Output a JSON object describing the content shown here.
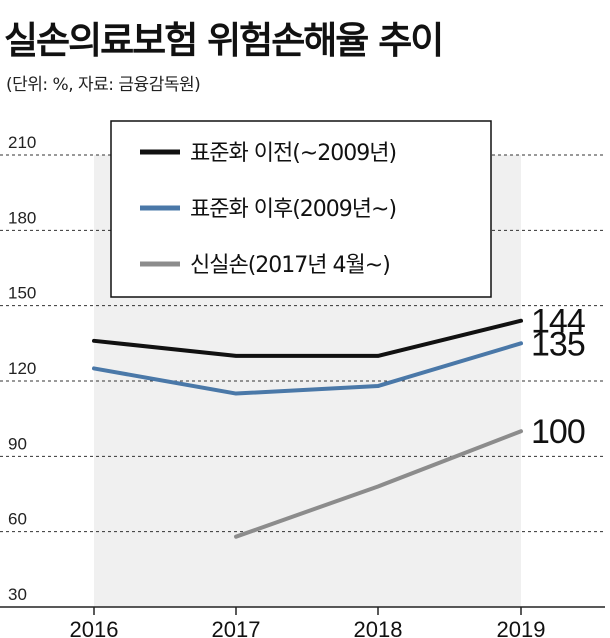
{
  "title": "실손의료보험 위험손해율 추이",
  "subtitle": "(단위: %, 자료: 금융감독원)",
  "chart_data": {
    "type": "line",
    "title": "실손의료보험 위험손해율 추이",
    "unit": "%",
    "source": "금융감독원",
    "categories": [
      "2016",
      "2017",
      "2018",
      "2019"
    ],
    "yticks": [
      30,
      60,
      90,
      120,
      150,
      180,
      210
    ],
    "ylim": [
      30,
      210
    ],
    "grid": true,
    "legend_position": "top-right",
    "series": [
      {
        "name": "표준화 이전(~2009년)",
        "color": "#111111",
        "values": [
          136,
          130,
          130,
          144
        ],
        "end_label": "144"
      },
      {
        "name": "표준화 이후(2009년~)",
        "color": "#4a78a8",
        "values": [
          125,
          115,
          118,
          135
        ],
        "end_label": "135"
      },
      {
        "name": "신실손(2017년 4월~)",
        "color": "#8c8c8c",
        "values": [
          null,
          58,
          78,
          100
        ],
        "end_label": "100"
      }
    ]
  }
}
